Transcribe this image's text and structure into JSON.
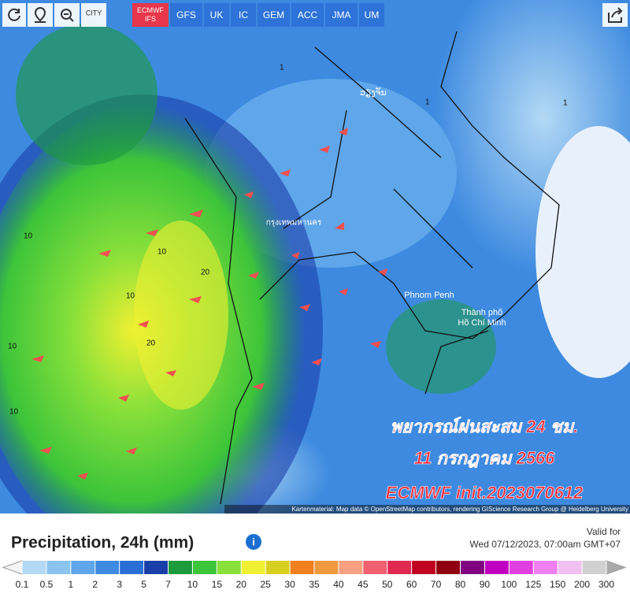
{
  "toolbar": {
    "city_button": "CITY",
    "models": [
      "ECMWF IFS",
      "GFS",
      "UK",
      "IC",
      "GEM",
      "ACC",
      "JMA",
      "UM"
    ]
  },
  "map": {
    "places": [
      "ວຽງຈັນ",
      "กรุงเทพมหานคร",
      "Phnom Penh",
      "Thành phố",
      "Hồ Chí Minh"
    ],
    "contour_labels": [
      "10",
      "10",
      "20",
      "10",
      "20",
      "1",
      "1",
      "1",
      "10",
      "10"
    ],
    "overlay": [
      "พยากรณ์ฝนสะสม 24 ชม.",
      "11 กรกฎาคม 2566",
      "ECMWF init.2023070612"
    ],
    "attribution": "Kartenmaterial: Map data © OpenStreetMap contributors, rendering GIScience Research Group @ Heidelberg University"
  },
  "legend": {
    "title": "Precipitation, 24h (mm)",
    "valid_label": "Valid for",
    "valid_time": "Wed 07/12/2023, 07:00am GMT+07",
    "labels": [
      "0.1",
      "0.5",
      "1",
      "2",
      "3",
      "5",
      "7",
      "10",
      "15",
      "20",
      "25",
      "30",
      "35",
      "40",
      "45",
      "50",
      "60",
      "70",
      "80",
      "90",
      "100",
      "125",
      "150",
      "200",
      "300"
    ],
    "colors": [
      "#b3d9f5",
      "#8cc4f0",
      "#5fa6ea",
      "#3d8ae0",
      "#2a6fd6",
      "#1a3fa8",
      "#1c9a3c",
      "#3cc43a",
      "#88e03a",
      "#f0f032",
      "#d8d020",
      "#f08020",
      "#f09a40",
      "#f8a080",
      "#f06070",
      "#e02850",
      "#c00020",
      "#900010",
      "#800080",
      "#c000c0",
      "#e040e0",
      "#f080f0",
      "#f0c0f0",
      "#d0d0d0"
    ]
  }
}
